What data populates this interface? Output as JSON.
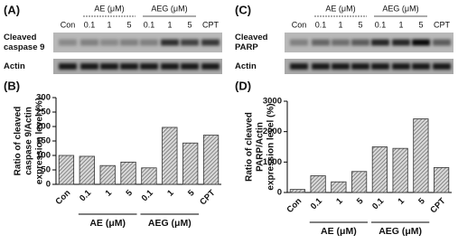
{
  "blots": [
    {
      "label": "(A)",
      "groups": [
        "AE (μM)",
        "AEG (μM)"
      ],
      "lanes": [
        "Con",
        "0.1",
        "1",
        "5",
        "0.1",
        "1",
        "5",
        "CPT"
      ],
      "rows": [
        [
          "Cleaved",
          "caspase 9"
        ],
        [
          "Actin"
        ]
      ]
    },
    {
      "label": "(C)",
      "groups": [
        "AE (μM)",
        "AEG (μM)"
      ],
      "lanes": [
        "Con",
        "0.1",
        "1",
        "5",
        "0.1",
        "1",
        "5",
        "CPT"
      ],
      "rows": [
        [
          "Cleaved",
          "PARP"
        ],
        [
          "Actin"
        ]
      ]
    }
  ],
  "chart_data": [
    {
      "type": "bar",
      "panel_label": "(B)",
      "y_label": [
        "Ratio of cleaved",
        "caspase 9/Actin",
        "expression level (%)"
      ],
      "categories": [
        "Con",
        "0.1",
        "1",
        "5",
        "0.1",
        "1",
        "5",
        "CPT"
      ],
      "group_labels": [
        "AE (μM)",
        "AEG (μM)"
      ],
      "values": [
        100,
        97,
        65,
        77,
        57,
        197,
        143,
        170
      ],
      "color": "#9a9a9a",
      "ylim": [
        0,
        300
      ],
      "yticks": [
        0,
        50,
        100,
        150,
        200,
        250,
        300
      ]
    },
    {
      "type": "bar",
      "panel_label": "(D)",
      "y_label": [
        "Ratio of cleaved",
        "PARP/Actin",
        "expression level (%)"
      ],
      "categories": [
        "Con",
        "0.1",
        "1",
        "5",
        "0.1",
        "1",
        "5",
        "CPT"
      ],
      "group_labels": [
        "AE (μM)",
        "AEG (μM)"
      ],
      "values": [
        100,
        550,
        350,
        690,
        1500,
        1450,
        2420,
        820
      ],
      "color": "#9a9a9a",
      "ylim": [
        0,
        3000
      ],
      "yticks": [
        0,
        1000,
        2000,
        3000
      ]
    }
  ]
}
